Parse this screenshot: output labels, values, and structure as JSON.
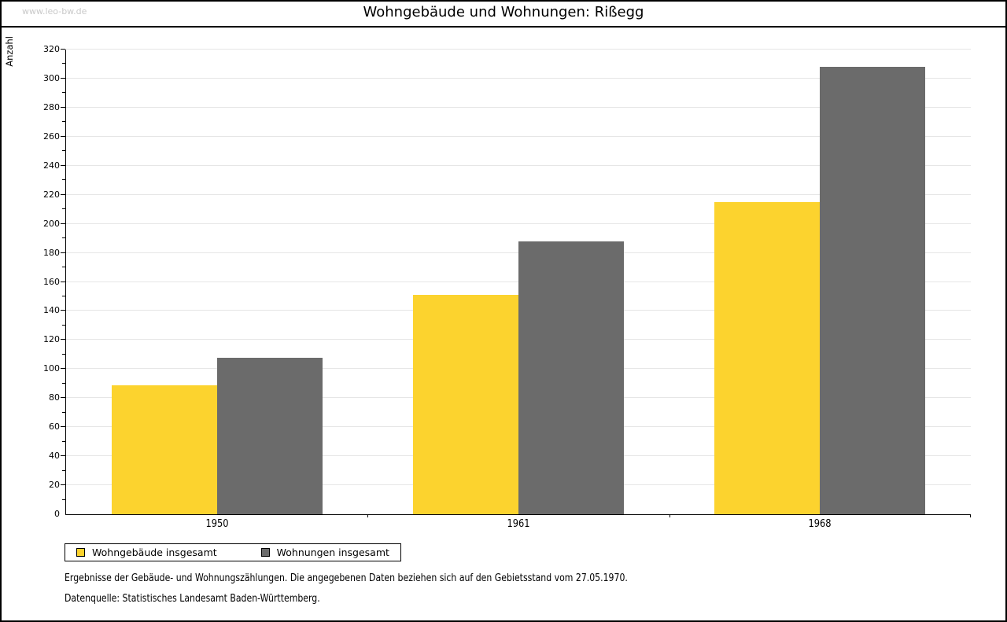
{
  "watermark": "www.leo-bw.de",
  "title": "Wohngebäude und Wohnungen: Rißegg",
  "chart_data": {
    "type": "bar",
    "title": "Wohngebäude und Wohnungen: Rißegg",
    "categories": [
      "1950",
      "1961",
      "1968"
    ],
    "series": [
      {
        "name": "Wohngebäude insgesamt",
        "color": "#fcd32e",
        "values": [
          89,
          151,
          215
        ]
      },
      {
        "name": "Wohnungen insgesamt",
        "color": "#6b6b6b",
        "values": [
          108,
          188,
          308
        ]
      }
    ],
    "xlabel": "",
    "ylabel": "Anzahl",
    "ylim": [
      0,
      320
    ],
    "ytick_step": 20,
    "yminor_step": 10,
    "grid": "horizontal-major",
    "legend_position": "bottom-left",
    "gridline_color": "#e6e6e6"
  },
  "footnotes": {
    "line1": "Ergebnisse der Gebäude- und Wohnungszählungen. Die angegebenen Daten beziehen sich auf den Gebietsstand vom 27.05.1970.",
    "line2": "Datenquelle: Statistisches Landesamt Baden-Württemberg."
  }
}
